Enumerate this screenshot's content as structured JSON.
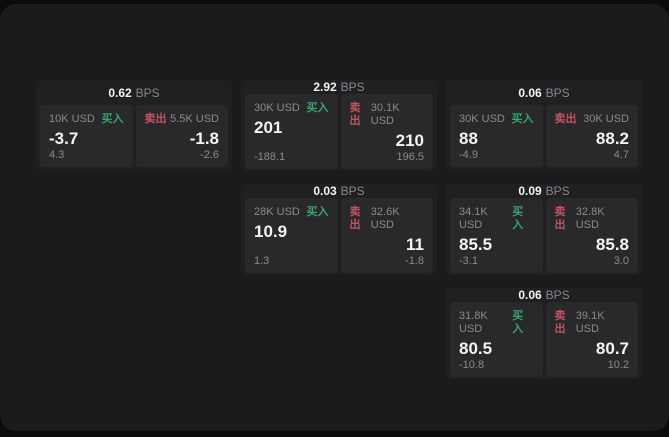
{
  "labels": {
    "bps": "BPS",
    "buy": "买入",
    "sell": "卖出"
  },
  "colors": {
    "buy": "#36a46e",
    "sell": "#c25460",
    "value": "#f4f4f5",
    "muted": "#8b8b8f",
    "screen": "#1b1b1d",
    "card": "#202023",
    "panel": "#29292b"
  },
  "cards": [
    {
      "col": 0,
      "row": 0,
      "bps": "0.62",
      "buy": {
        "amount": "10K USD",
        "value": "-3.7",
        "delta": "4.3"
      },
      "sell": {
        "amount": "5.5K USD",
        "value": "-1.8",
        "delta": "-2.6"
      }
    },
    {
      "col": 1,
      "row": 0,
      "bps": "2.92",
      "buy": {
        "amount": "30K USD",
        "value": "201",
        "delta": "-188.1"
      },
      "sell": {
        "amount": "30.1K USD",
        "value": "210",
        "delta": "196.5"
      }
    },
    {
      "col": 2,
      "row": 0,
      "bps": "0.06",
      "buy": {
        "amount": "30K USD",
        "value": "88",
        "delta": "-4.9"
      },
      "sell": {
        "amount": "30K USD",
        "value": "88.2",
        "delta": "4.7"
      }
    },
    {
      "col": 1,
      "row": 1,
      "bps": "0.03",
      "buy": {
        "amount": "28K USD",
        "value": "10.9",
        "delta": "1.3"
      },
      "sell": {
        "amount": "32.6K USD",
        "value": "11",
        "delta": "-1.8"
      }
    },
    {
      "col": 2,
      "row": 1,
      "bps": "0.09",
      "buy": {
        "amount": "34.1K USD",
        "value": "85.5",
        "delta": "-3.1"
      },
      "sell": {
        "amount": "32.8K USD",
        "value": "85.8",
        "delta": "3.0"
      }
    },
    {
      "col": 2,
      "row": 2,
      "bps": "0.06",
      "buy": {
        "amount": "31.8K USD",
        "value": "80.5",
        "delta": "-10.8"
      },
      "sell": {
        "amount": "39.1K USD",
        "value": "80.7",
        "delta": "10.2"
      }
    }
  ]
}
